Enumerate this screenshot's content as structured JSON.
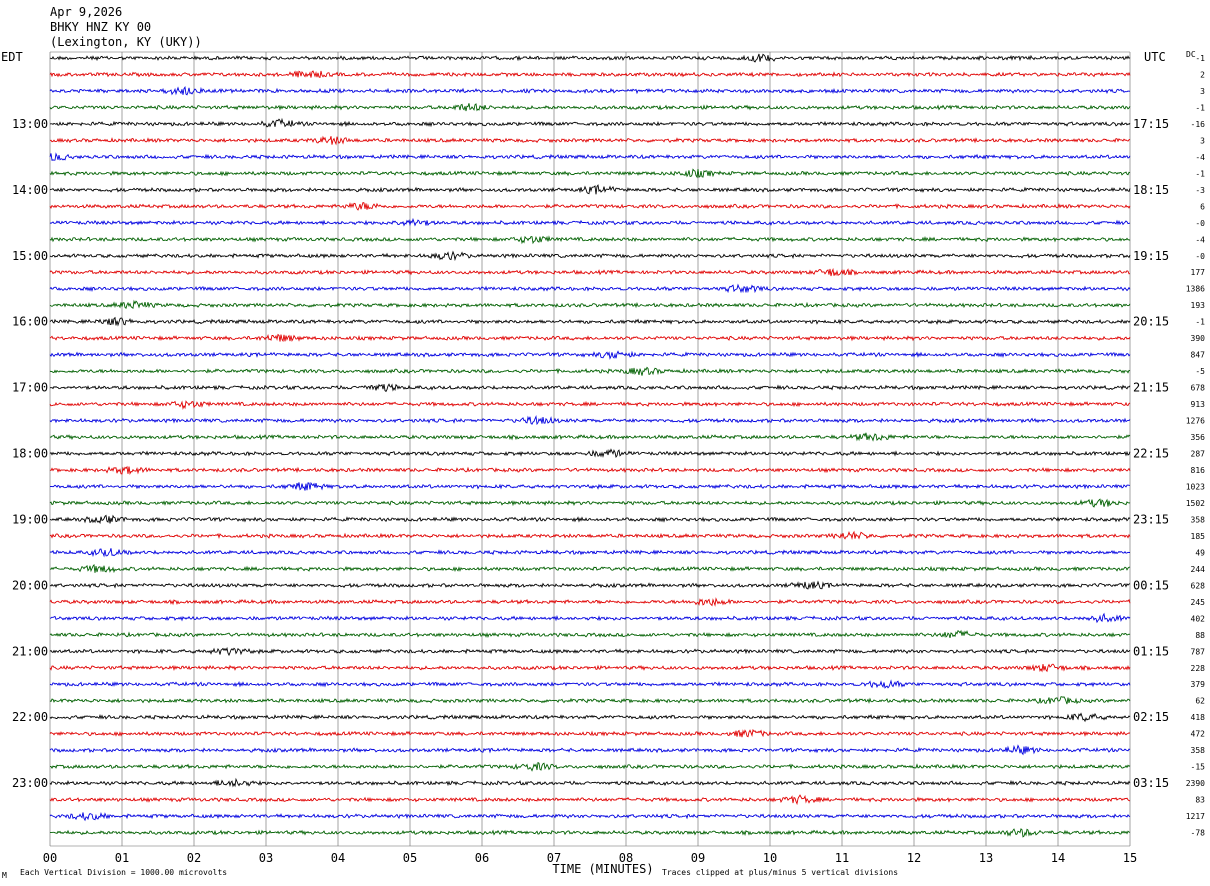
{
  "header": {
    "date": "Apr 9,2026",
    "station": "BHKY HNZ KY 00",
    "location": "(Lexington, KY (UKY))"
  },
  "chart_data": {
    "type": "seismogram (helicorder)",
    "left_timezone": "EDT",
    "right_timezone": "UTC",
    "dc_label": "DC",
    "xlabel": "TIME (MINUTES)",
    "xlim": [
      0,
      15
    ],
    "x_ticks": [
      "00",
      "01",
      "02",
      "03",
      "04",
      "05",
      "06",
      "07",
      "08",
      "09",
      "10",
      "11",
      "12",
      "13",
      "14",
      "15"
    ],
    "trace_colors": [
      "#000000",
      "#e00000",
      "#0000e0",
      "#006000"
    ],
    "left_hour_labels": [
      "13:00",
      "14:00",
      "15:00",
      "16:00",
      "17:00",
      "18:00",
      "19:00",
      "20:00",
      "21:00",
      "22:00",
      "23:00"
    ],
    "right_hour_labels": [
      "17:15",
      "18:15",
      "19:15",
      "20:15",
      "21:15",
      "22:15",
      "23:15",
      "00:15",
      "01:15",
      "02:15",
      "03:15"
    ],
    "dc_offsets": [
      "-1",
      "2",
      "3",
      "-1",
      "-16",
      "3",
      "-4",
      "-1",
      "-3",
      "6",
      "-0",
      "-4",
      "-0",
      "177",
      "1386",
      "193",
      "-1",
      "390",
      "847",
      "-5",
      "678",
      "913",
      "1276",
      "356",
      "287",
      "816",
      "1023",
      "1502",
      "358",
      "185",
      "49",
      "244",
      "628",
      "245",
      "402",
      "88",
      "787",
      "228",
      "379",
      "62",
      "418",
      "472",
      "358",
      "-15",
      "2390",
      "83",
      "1217",
      "-78"
    ],
    "footer_left": "Each Vertical Division = 1000.00 microvolts",
    "footer_right": "Traces clipped at plus/minus 5 vertical divisions",
    "footer_mark": "M"
  }
}
